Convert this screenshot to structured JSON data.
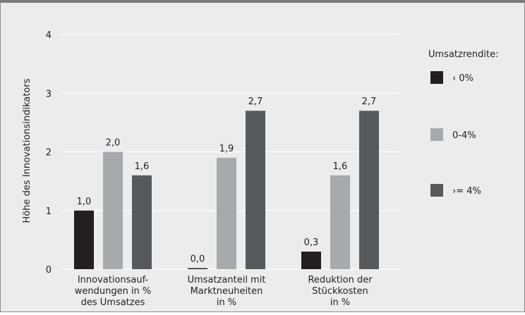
{
  "chart_data": {
    "type": "bar",
    "title": "",
    "xlabel": "",
    "ylabel": "Höhe des Innovationsindikators",
    "ylim": [
      0,
      4
    ],
    "yticks": [
      "0",
      "1",
      "2",
      "3",
      "4"
    ],
    "grid": true,
    "legend_position": "right",
    "legend_title": "Umsatzrendite:",
    "categories": [
      [
        "Innovationsauf-",
        "wendungen in %",
        "des Umsatzes"
      ],
      [
        "Umsatzanteil mit",
        "Marktneuheiten",
        "in %"
      ],
      [
        "Reduktion der",
        "Stückkosten",
        "in %"
      ]
    ],
    "series": [
      {
        "name": "‹ 0%",
        "color": "#231f20",
        "values": [
          1.0,
          0.0,
          0.3
        ],
        "labels": [
          "1,0",
          "0,0",
          "0,3"
        ]
      },
      {
        "name": "0-4%",
        "color": "#a7a9ac",
        "values": [
          2.0,
          1.9,
          1.6
        ],
        "labels": [
          "2,0",
          "1,9",
          "1,6"
        ]
      },
      {
        "name": "›= 4%",
        "color": "#58595b",
        "values": [
          1.6,
          2.7,
          2.7
        ],
        "labels": [
          "1,6",
          "2,7",
          "2,7"
        ]
      }
    ],
    "gridline_color": "#ffffff"
  }
}
